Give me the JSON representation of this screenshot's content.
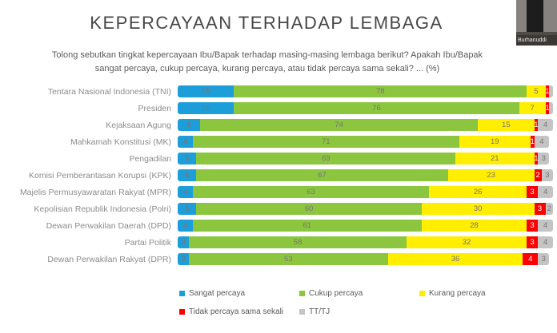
{
  "title": "KEPERCAYAAN TERHADAP LEMBAGA",
  "subtitle": "Tolong sebutkan tingkat kepercayaan Ibu/Bapak terhadap masing-masing lembaga berikut? Apakah Ibu/Bapak sangat percaya, cukup percaya, kurang percaya, atau tidak percaya sama sekali? ... (%)",
  "video_overlay": {
    "participant_name": "Burhanuddi"
  },
  "colors": {
    "sangat_percaya": "#1E9ED9",
    "cukup_percaya": "#8CC63F",
    "kurang_percaya": "#FFEE00",
    "tidak_percaya": "#FE0000",
    "tt_tj": "#C4C4C4",
    "title_text": "#474747",
    "subtitle_text": "#5a5a5a",
    "category_text": "#8c8c8c",
    "value_text": "#757575"
  },
  "chart_data": {
    "type": "bar",
    "stacked": true,
    "orientation": "horizontal",
    "value_unit": "%",
    "xlim": [
      0,
      100
    ],
    "grid": false,
    "legend_position": "bottom",
    "categories": [
      "Tentara Nasional Indonesia (TNI)",
      "Presiden",
      "Kejaksaan Agung",
      "Mahkamah Konstitusi (MK)",
      "Pengadilan",
      "Komisi Pemberantasan Korupsi (KPK)",
      "Majelis Permusyawaratan Rakyat (MPR)",
      "Kepolisian Republik Indonesia (Polri)",
      "Dewan Perwakilan Daerah (DPD)",
      "Partai Politik",
      "Dewan Perwakilan Rakyat (DPR)"
    ],
    "series": [
      {
        "name": "Sangat percaya",
        "color": "#1E9ED9",
        "values": [
          15,
          15,
          6,
          4,
          5,
          5,
          4,
          5,
          4,
          3,
          3
        ]
      },
      {
        "name": "Cukup percaya",
        "color": "#8CC63F",
        "values": [
          78,
          76,
          74,
          71,
          69,
          67,
          63,
          60,
          61,
          58,
          53
        ]
      },
      {
        "name": "Kurang percaya",
        "color": "#FFEE00",
        "values": [
          5,
          7,
          15,
          19,
          21,
          23,
          26,
          30,
          28,
          32,
          36
        ]
      },
      {
        "name": "Tidak percaya sama sekali",
        "color": "#FE0000",
        "values": [
          1,
          1,
          1,
          1,
          1,
          2,
          3,
          3,
          3,
          3,
          4
        ]
      },
      {
        "name": "TT/TJ",
        "color": "#C4C4C4",
        "values": [
          1,
          1,
          4,
          4,
          3,
          3,
          4,
          2,
          4,
          4,
          3
        ]
      }
    ]
  }
}
